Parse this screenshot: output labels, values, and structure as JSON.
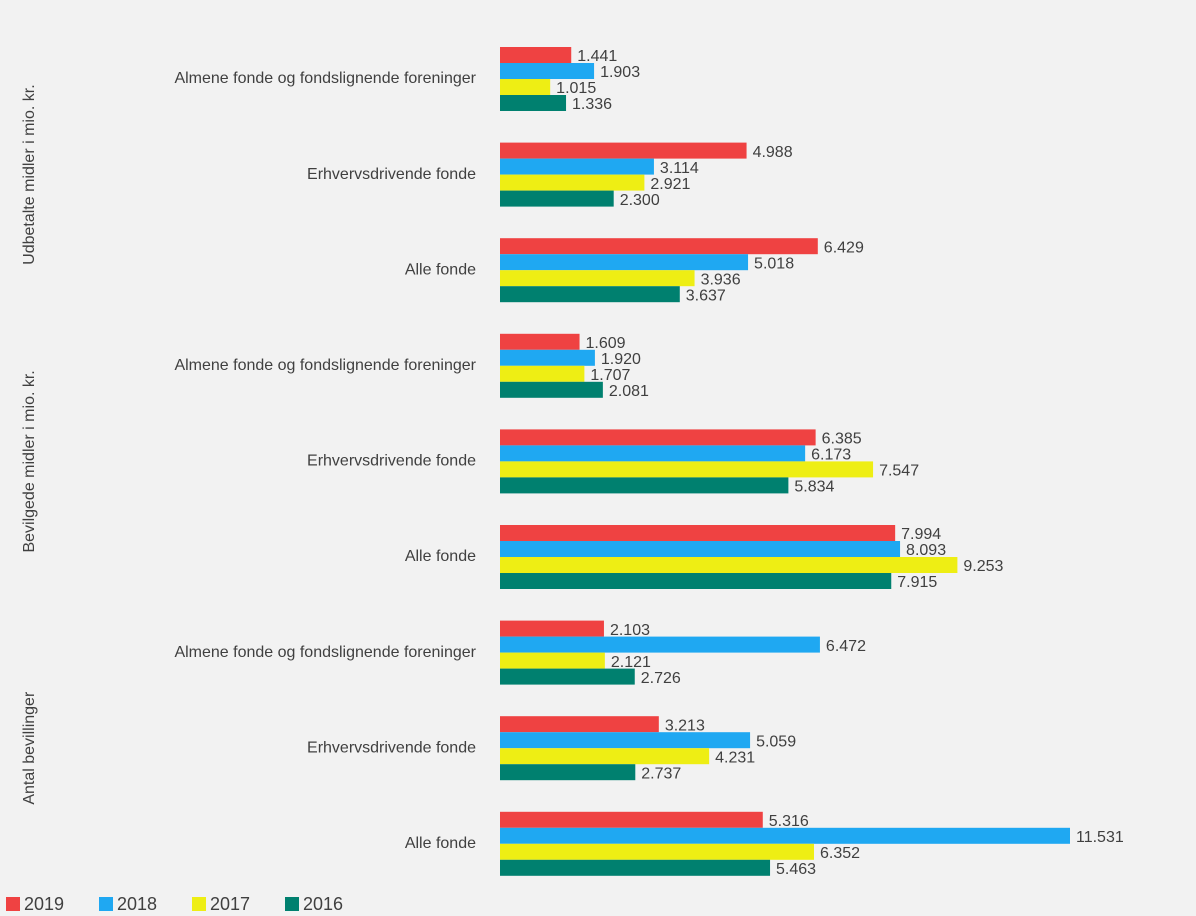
{
  "chart_data": {
    "type": "bar",
    "orientation": "horizontal",
    "groups": [
      "Udbetalte midler i mio. kr.",
      "Bevilgede midler i mio. kr.",
      "Antal bevillinger"
    ],
    "categories": [
      "Almene fonde og fondslignende foreninger",
      "Erhvervsdrivende fonde",
      "Alle fonde",
      "Almene fonde og fondslignende foreninger",
      "Erhvervsdrivende fonde",
      "Alle fonde",
      "Almene fonde og fondslignende foreninger",
      "Erhvervsdrivende fonde",
      "Alle fonde"
    ],
    "series": [
      {
        "name": "2019",
        "color": "#ef4242",
        "values": [
          1441,
          4988,
          6429,
          1609,
          6385,
          7994,
          2103,
          3213,
          5316
        ],
        "value_labels": [
          "1.441",
          "4.988",
          "6.429",
          "1.609",
          "6.385",
          "7.994",
          "2.103",
          "3.213",
          "5.316"
        ]
      },
      {
        "name": "2018",
        "color": "#1fa8f2",
        "values": [
          1903,
          3114,
          5018,
          1920,
          6173,
          8093,
          6472,
          5059,
          11531
        ],
        "value_labels": [
          "1.903",
          "3.114",
          "5.018",
          "1.920",
          "6.173",
          "8.093",
          "6.472",
          "5.059",
          "11.531"
        ]
      },
      {
        "name": "2017",
        "color": "#eeee14",
        "values": [
          1015,
          2921,
          3936,
          1707,
          7547,
          9253,
          2121,
          4231,
          6352
        ],
        "value_labels": [
          "1.015",
          "2.921",
          "3.936",
          "1.707",
          "7.547",
          "9.253",
          "2.121",
          "4.231",
          "6.352"
        ]
      },
      {
        "name": "2016",
        "color": "#00806f",
        "values": [
          1336,
          2300,
          3637,
          2081,
          5834,
          7915,
          2726,
          2737,
          5463
        ],
        "value_labels": [
          "1.336",
          "2.300",
          "3.637",
          "2.081",
          "5.834",
          "7.915",
          "2.726",
          "2.737",
          "5.463"
        ]
      }
    ],
    "legend": "bottom-left"
  }
}
